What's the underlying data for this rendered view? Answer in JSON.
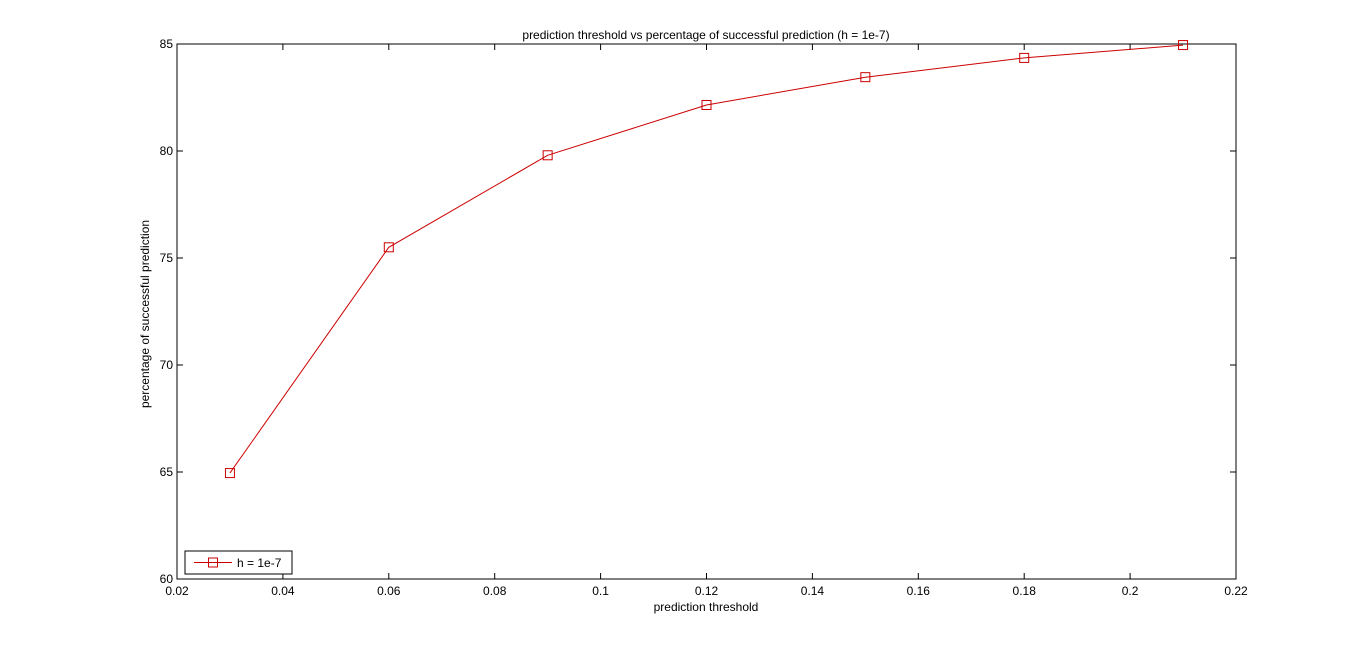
{
  "chart_data": {
    "type": "line",
    "title": "prediction threshold vs percentage of successful prediction (h = 1e-7)",
    "xlabel": "prediction threshold",
    "ylabel": "percentage of successful prediction",
    "xlim": [
      0.02,
      0.22
    ],
    "ylim": [
      60,
      85
    ],
    "x_ticks": [
      0.02,
      0.04,
      0.06,
      0.08,
      0.1,
      0.12,
      0.14,
      0.16,
      0.18,
      0.2,
      0.22
    ],
    "x_tick_labels": [
      "0.02",
      "0.04",
      "0.06",
      "0.08",
      "0.1",
      "0.12",
      "0.14",
      "0.16",
      "0.18",
      "0.2",
      "0.22"
    ],
    "y_ticks": [
      60,
      65,
      70,
      75,
      80,
      85
    ],
    "y_tick_labels": [
      "60",
      "65",
      "70",
      "75",
      "80",
      "85"
    ],
    "grid": false,
    "legend_position": "bottom-left",
    "series": [
      {
        "name": "h = 1e-7",
        "color": "#cc0000",
        "marker": "square",
        "x": [
          0.03,
          0.06,
          0.09,
          0.12,
          0.15,
          0.18,
          0.21
        ],
        "values": [
          64.95,
          75.5,
          79.8,
          82.15,
          83.45,
          84.35,
          84.95
        ]
      }
    ]
  }
}
